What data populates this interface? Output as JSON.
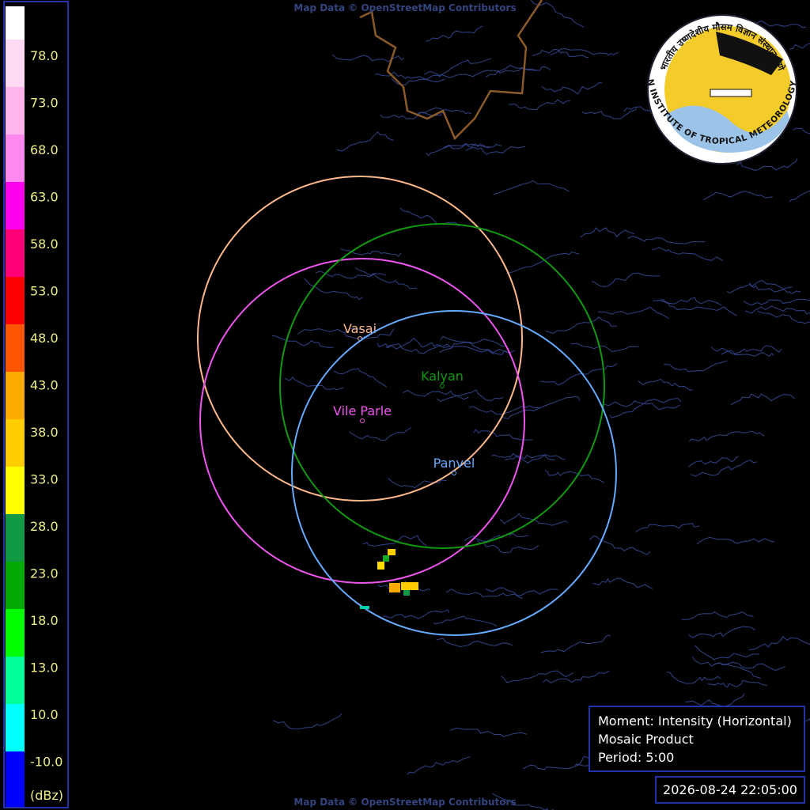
{
  "credits": {
    "top": "Map Data © OpenStreetMap Contributors",
    "bottom": "Map Data © OpenStreetMap Contributors"
  },
  "legend": {
    "colors": [
      "#ffffff",
      "#ffd8f4",
      "#ffb4ec",
      "#ff88ee",
      "#ff00ee",
      "#ff0077",
      "#ff0000",
      "#ff5500",
      "#ffaa00",
      "#ffcc00",
      "#ffff00",
      "#119944",
      "#00aa00",
      "#00ff00",
      "#00ff99",
      "#00ffff",
      "#0000ff"
    ],
    "labels": [
      "78.0",
      "73.0",
      "68.0",
      "63.0",
      "58.0",
      "53.0",
      "48.0",
      "43.0",
      "38.0",
      "33.0",
      "28.0",
      "23.0",
      "18.0",
      "13.0",
      "10.0",
      "-10.0"
    ],
    "unit": "(dBz)"
  },
  "stations": [
    {
      "name": "Vasai",
      "color": "#ffb98a"
    },
    {
      "name": "Vile Parle",
      "color": "#ee55ee"
    },
    {
      "name": "Kalyan",
      "color": "#119911"
    },
    {
      "name": "Panvel",
      "color": "#66aaff"
    }
  ],
  "info": {
    "lines": [
      "Moment: Intensity (Horizontal)",
      "Mosaic Product",
      "Period: 5:00"
    ],
    "timestamp": "2026-08-24 22:05:00"
  },
  "logo": {
    "hindi": "भारतीय उष्णदेशीय मौसम विज्ञान संस्थान पुणे",
    "english": "INDIAN INSTITUTE OF TROPICAL METEOROLOGY PUNE"
  }
}
